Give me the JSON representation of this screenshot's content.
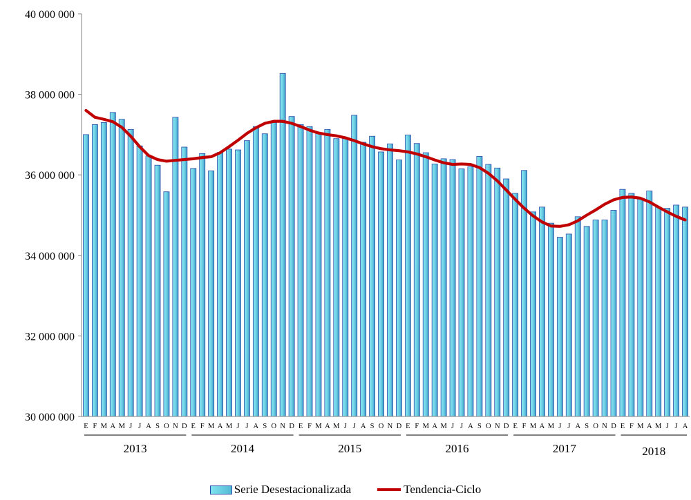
{
  "chart_data": {
    "type": "bar",
    "ylim": [
      30000000,
      40000000
    ],
    "y_ticks": [
      "30 000 000",
      "32 000 000",
      "34 000 000",
      "36 000 000",
      "38 000 000",
      "40 000 000"
    ],
    "y_tick_values": [
      30000000,
      32000000,
      34000000,
      36000000,
      38000000,
      40000000
    ],
    "month_labels": [
      "E",
      "F",
      "M",
      "A",
      "M",
      "J",
      "J",
      "A",
      "S",
      "O",
      "N",
      "D",
      "E",
      "F",
      "M",
      "A",
      "M",
      "J",
      "J",
      "A",
      "S",
      "O",
      "N",
      "D",
      "E",
      "F",
      "M",
      "A",
      "M",
      "J",
      "J",
      "A",
      "S",
      "O",
      "N",
      "D",
      "E",
      "F",
      "M",
      "A",
      "M",
      "J",
      "J",
      "A",
      "S",
      "O",
      "N",
      "D",
      "E",
      "F",
      "M",
      "A",
      "M",
      "J",
      "J",
      "A",
      "S",
      "O",
      "N",
      "D",
      "E",
      "F",
      "M",
      "A",
      "M",
      "J",
      "J",
      "A"
    ],
    "years": [
      {
        "label": "2013",
        "start": 0,
        "end": 11
      },
      {
        "label": "2014",
        "start": 12,
        "end": 23
      },
      {
        "label": "2015",
        "start": 24,
        "end": 35
      },
      {
        "label": "2016",
        "start": 36,
        "end": 47
      },
      {
        "label": "2017",
        "start": 48,
        "end": 59
      },
      {
        "label": "2018",
        "start": 60,
        "end": 67
      }
    ],
    "grid": false,
    "legend_position": "bottom-center",
    "series": [
      {
        "name": "Serie Desestacionalizada",
        "kind": "bar",
        "color": "#56b9d6",
        "border": "#2a48a8",
        "values": [
          37000000,
          37250000,
          37300000,
          37550000,
          37380000,
          37130000,
          36720000,
          36470000,
          36240000,
          35580000,
          37430000,
          36690000,
          36160000,
          36530000,
          36100000,
          36560000,
          36640000,
          36620000,
          36850000,
          37200000,
          37020000,
          37300000,
          38520000,
          37450000,
          37250000,
          37200000,
          37050000,
          37130000,
          36900000,
          36920000,
          37480000,
          36810000,
          36960000,
          36570000,
          36770000,
          36370000,
          36990000,
          36780000,
          36550000,
          36270000,
          36400000,
          36380000,
          36150000,
          36200000,
          36460000,
          36260000,
          36170000,
          35900000,
          35540000,
          36110000,
          35080000,
          35200000,
          34800000,
          34450000,
          34530000,
          34960000,
          34720000,
          34880000,
          34880000,
          35120000,
          35640000,
          35540000,
          35400000,
          35600000,
          35200000,
          35170000,
          35250000,
          35200000
        ]
      },
      {
        "name": "Tendencia-Ciclo",
        "kind": "line",
        "color": "#c00000",
        "values": [
          37600000,
          37430000,
          37380000,
          37320000,
          37180000,
          36960000,
          36700000,
          36480000,
          36380000,
          36340000,
          36360000,
          36380000,
          36400000,
          36430000,
          36450000,
          36550000,
          36700000,
          36860000,
          37030000,
          37170000,
          37280000,
          37330000,
          37330000,
          37280000,
          37200000,
          37110000,
          37040000,
          37000000,
          36970000,
          36920000,
          36850000,
          36770000,
          36700000,
          36650000,
          36620000,
          36600000,
          36570000,
          36520000,
          36450000,
          36370000,
          36300000,
          36260000,
          36270000,
          36260000,
          36180000,
          36040000,
          35850000,
          35620000,
          35390000,
          35170000,
          34980000,
          34830000,
          34730000,
          34720000,
          34760000,
          34860000,
          35000000,
          35130000,
          35270000,
          35380000,
          35440000,
          35450000,
          35420000,
          35330000,
          35200000,
          35080000,
          34970000,
          34880000
        ]
      }
    ]
  }
}
